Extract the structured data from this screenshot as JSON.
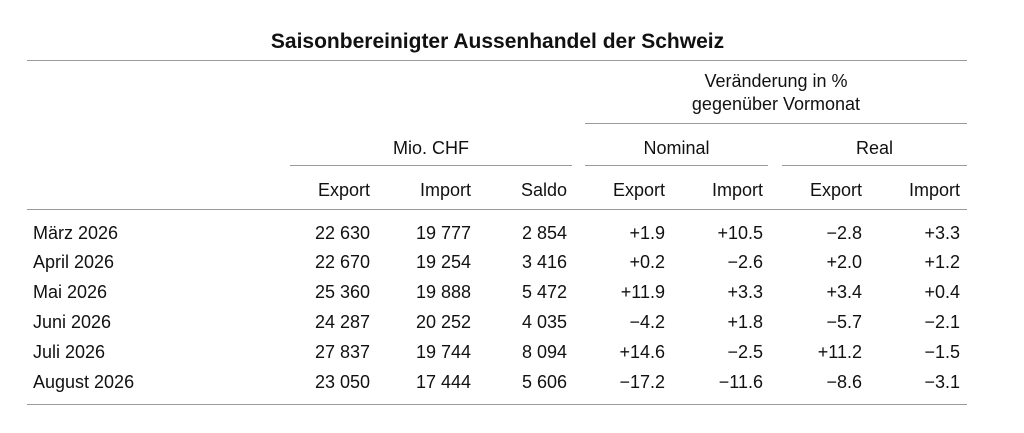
{
  "title": "Saisonbereinigter Aussenhandel der Schweiz",
  "header": {
    "change_line1": "Veränderung in %",
    "change_line2": "gegenüber Vormonat",
    "mio_chf": "Mio. CHF",
    "nominal": "Nominal",
    "real": "Real",
    "columns": [
      "Export",
      "Import",
      "Saldo",
      "Export",
      "Import",
      "Export",
      "Import"
    ]
  },
  "rows": [
    {
      "month": "März 2026",
      "cells": [
        "22 630",
        "19 777",
        "2 854",
        "+1.9",
        "+10.5",
        "−2.8",
        "+3.3"
      ]
    },
    {
      "month": "April 2026",
      "cells": [
        "22 670",
        "19 254",
        "3 416",
        "+0.2",
        "−2.6",
        "+2.0",
        "+1.2"
      ]
    },
    {
      "month": "Mai 2026",
      "cells": [
        "25 360",
        "19 888",
        "5 472",
        "+11.9",
        "+3.3",
        "+3.4",
        "+0.4"
      ]
    },
    {
      "month": "Juni 2026",
      "cells": [
        "24 287",
        "20 252",
        "4 035",
        "−4.2",
        "+1.8",
        "−5.7",
        "−2.1"
      ]
    },
    {
      "month": "Juli 2026",
      "cells": [
        "27 837",
        "19 744",
        "8 094",
        "+14.6",
        "−2.5",
        "+11.2",
        "−1.5"
      ]
    },
    {
      "month": "August 2026",
      "cells": [
        "23 050",
        "17 444",
        "5 606",
        "−17.2",
        "−11.6",
        "−8.6",
        "−3.1"
      ]
    }
  ]
}
